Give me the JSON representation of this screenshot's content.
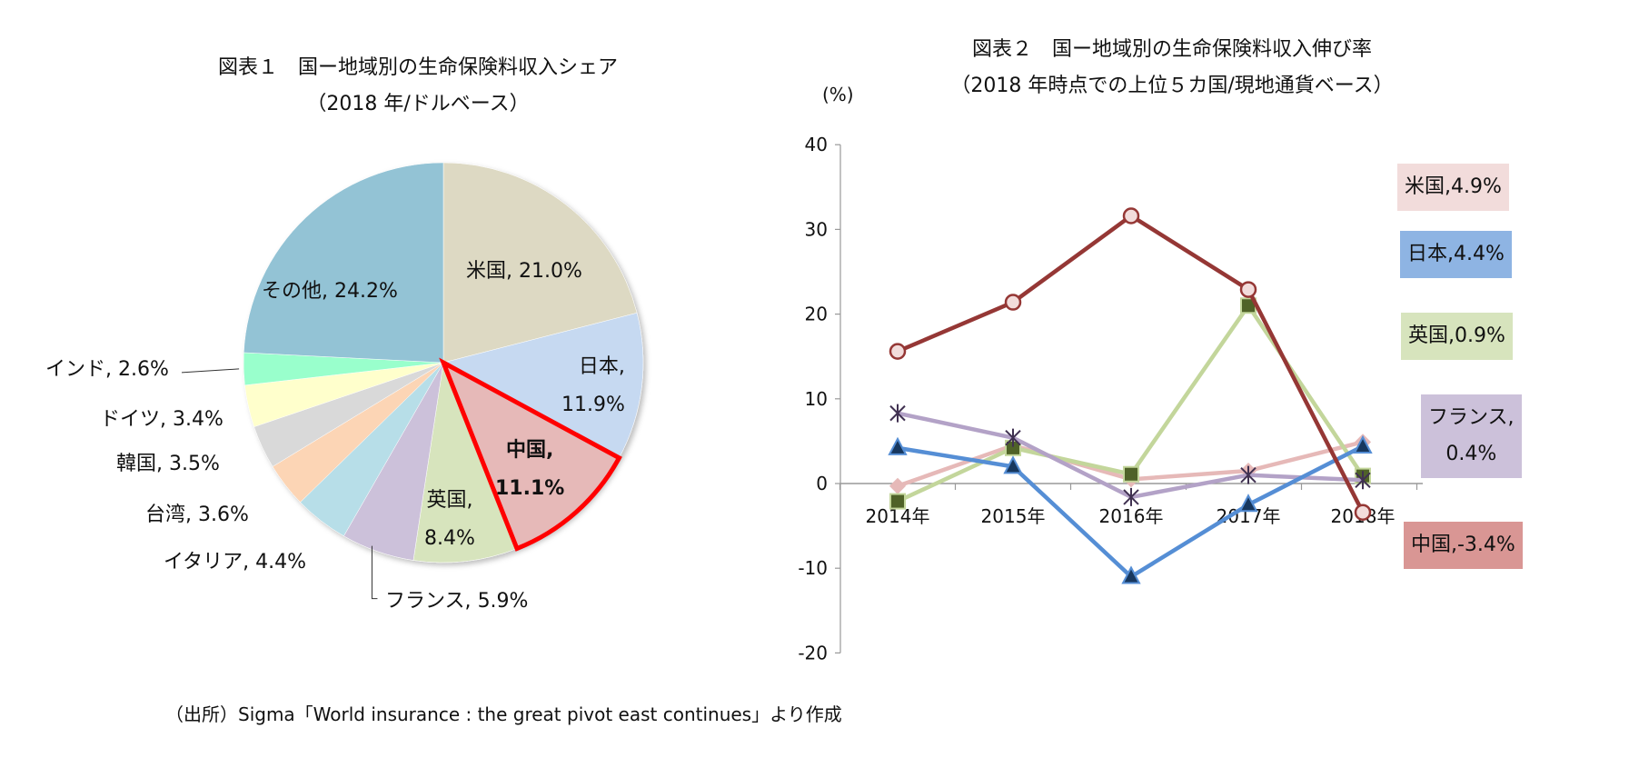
{
  "chart_data": [
    {
      "type": "pie",
      "title": "図表１　国ー地域別の生命保険料収入シェア",
      "subtitle": "（2018 年/ドルベース）",
      "slices": [
        {
          "name": "米国",
          "value": 21.0,
          "label_name": "米国,",
          "label_value": "21.0%",
          "color": "#ddd9c3",
          "bold": false
        },
        {
          "name": "日本",
          "value": 11.9,
          "label_name": "日本,",
          "label_value": "11.9%",
          "color": "#c6d9f1",
          "bold": false
        },
        {
          "name": "中国",
          "value": 11.1,
          "label_name": "中国,",
          "label_value": "11.1%",
          "color": "#e6b9b8",
          "bold": true,
          "highlight": "#ff0000"
        },
        {
          "name": "英国",
          "value": 8.4,
          "label_name": "英国,",
          "label_value": "8.4%",
          "color": "#d7e4bd",
          "bold": false
        },
        {
          "name": "フランス",
          "value": 5.9,
          "label_name": "フランス,",
          "label_value": "5.9%",
          "color": "#ccc1da",
          "bold": false
        },
        {
          "name": "イタリア",
          "value": 4.4,
          "label_name": "イタリア,",
          "label_value": "4.4%",
          "color": "#b7dee8",
          "bold": false
        },
        {
          "name": "台湾",
          "value": 3.6,
          "label_name": "台湾,",
          "label_value": "3.6%",
          "color": "#fcd5b5",
          "bold": false
        },
        {
          "name": "韓国",
          "value": 3.5,
          "label_name": "韓国,",
          "label_value": "3.5%",
          "color": "#d9d9d9",
          "bold": false
        },
        {
          "name": "ドイツ",
          "value": 3.4,
          "label_name": "ドイツ,",
          "label_value": "3.4%",
          "color": "#ffffcc",
          "bold": false
        },
        {
          "name": "インド",
          "value": 2.6,
          "label_name": "インド,",
          "label_value": "2.6%",
          "color": "#99ffcc",
          "bold": false
        },
        {
          "name": "その他",
          "value": 24.2,
          "label_name": "その他,",
          "label_value": "24.2%",
          "color": "#93c3d5",
          "bold": false
        }
      ]
    },
    {
      "type": "line",
      "title": "図表２　国ー地域別の生命保険料収入伸び率",
      "subtitle": "（2018 年時点での上位５カ国/現地通貨ベース）",
      "ylabel": "(%)",
      "ylim": [
        -20,
        40
      ],
      "yticks": [
        "40",
        "30",
        "20",
        "10",
        "0",
        "-10",
        "-20"
      ],
      "ytick_values": [
        40,
        30,
        20,
        10,
        0,
        -10,
        -20
      ],
      "categories": [
        "2014年",
        "2015年",
        "2016年",
        "2017年",
        "2018年"
      ],
      "grid": false,
      "series": [
        {
          "name": "米国",
          "values": [
            -0.3,
            4.5,
            0.5,
            1.5,
            4.9
          ],
          "color": "#e6b9b8",
          "marker": "diamond",
          "marker_fill": "#e6b9b8",
          "end_label": "米国,4.9%",
          "label_bg": "#f2dcdb"
        },
        {
          "name": "英国",
          "values": [
            -2.1,
            4.2,
            1.1,
            21.0,
            0.9
          ],
          "color": "#c3d69b",
          "marker": "square",
          "marker_fill": "#4f6228",
          "end_label": "英国,0.9%",
          "label_bg": "#d7e4bd"
        },
        {
          "name": "フランス",
          "values": [
            8.3,
            5.4,
            -1.6,
            1.0,
            0.4
          ],
          "color": "#b3a2c7",
          "marker": "asterisk",
          "marker_fill": "#403151",
          "end_label_1": "フランス,",
          "end_label_2": "0.4%",
          "label_bg": "#ccc1da"
        },
        {
          "name": "日本",
          "values": [
            4.2,
            2.0,
            -11.0,
            -2.5,
            4.4
          ],
          "color": "#558ed5",
          "marker": "triangle",
          "marker_fill": "#17375e",
          "end_label": "日本,4.4%",
          "label_bg": "#8eb4e3"
        },
        {
          "name": "中国",
          "values": [
            15.6,
            21.4,
            31.6,
            22.9,
            -3.4
          ],
          "color": "#953735",
          "marker": "circle",
          "marker_fill": "#f2dcdb",
          "end_label": "中国,-3.4%",
          "label_bg": "#d99694"
        }
      ]
    }
  ],
  "source": "（出所）Sigma「World insurance : the great pivot east continues」より作成"
}
